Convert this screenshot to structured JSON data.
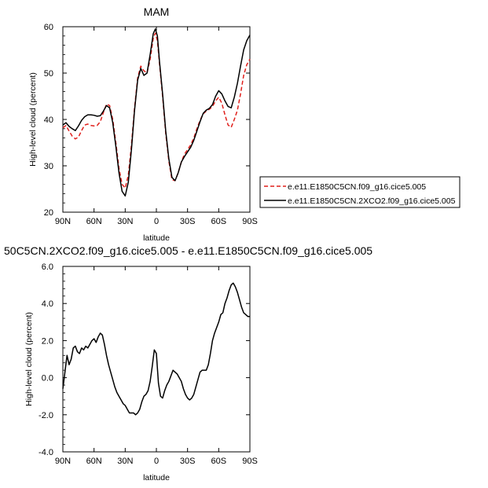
{
  "chart_data": [
    {
      "type": "line",
      "title": "MAM",
      "xlabel": "latitude",
      "ylabel": "High-level cloud (percent)",
      "xlim": [
        90,
        -90
      ],
      "ylim": [
        20,
        60
      ],
      "x_ticks": [
        "90N",
        "60N",
        "30N",
        "0",
        "30S",
        "60S",
        "90S"
      ],
      "y_ticks": [
        "20",
        "30",
        "40",
        "50",
        "60"
      ],
      "legend_position": "right",
      "series": [
        {
          "name": "e.e11.E1850C5CN.f09_g16.cice5.005",
          "color": "#e0201c",
          "dash": "dashed",
          "x": [
            90,
            87,
            84,
            81,
            78,
            75,
            72,
            69,
            66,
            63,
            60,
            57,
            54,
            51,
            48,
            45,
            42,
            39,
            36,
            33,
            30,
            27,
            24,
            21,
            18,
            15,
            12,
            9,
            6,
            3,
            1,
            -1,
            -3,
            -6,
            -9,
            -12,
            -15,
            -18,
            -21,
            -24,
            -27,
            -30,
            -33,
            -36,
            -39,
            -42,
            -45,
            -48,
            -51,
            -54,
            -57,
            -60,
            -63,
            -66,
            -69,
            -72,
            -75,
            -78,
            -81,
            -84,
            -87,
            -90
          ],
          "y": [
            38.2,
            38.7,
            37.5,
            36.4,
            35.8,
            36.2,
            37.6,
            38.8,
            39.0,
            38.7,
            38.6,
            38.7,
            39.5,
            41.5,
            43.3,
            43.0,
            40.0,
            35.0,
            29.5,
            26.0,
            25.2,
            28.0,
            34.5,
            42.5,
            49.0,
            51.5,
            50.5,
            50.0,
            53.0,
            57.5,
            58.6,
            57.0,
            52.0,
            45.0,
            37.0,
            31.0,
            27.0,
            26.8,
            28.5,
            30.8,
            32.5,
            33.5,
            34.5,
            36.0,
            38.0,
            39.8,
            41.2,
            41.8,
            42.2,
            42.8,
            44.0,
            44.8,
            43.5,
            41.0,
            38.8,
            38.3,
            40.0,
            42.0,
            45.5,
            49.5,
            51.8,
            53.0
          ]
        },
        {
          "name": "e.e11.E1850C5CN.2XCO2.f09_g16.cice5.005",
          "color": "#000000",
          "dash": "solid",
          "x": [
            90,
            87,
            84,
            81,
            78,
            75,
            72,
            69,
            66,
            63,
            60,
            57,
            54,
            51,
            48,
            45,
            42,
            39,
            36,
            33,
            30,
            27,
            24,
            21,
            18,
            15,
            12,
            9,
            6,
            3,
            1,
            -1,
            -3,
            -6,
            -9,
            -12,
            -15,
            -18,
            -21,
            -24,
            -27,
            -30,
            -33,
            -36,
            -39,
            -42,
            -45,
            -48,
            -51,
            -54,
            -57,
            -60,
            -63,
            -66,
            -69,
            -72,
            -75,
            -78,
            -81,
            -84,
            -87,
            -90
          ],
          "y": [
            38.8,
            39.3,
            38.5,
            38.0,
            37.6,
            38.6,
            39.8,
            40.6,
            41.0,
            41.0,
            40.9,
            40.7,
            40.8,
            41.8,
            43.0,
            42.5,
            39.3,
            34.2,
            28.5,
            24.5,
            23.5,
            26.5,
            33.5,
            42.0,
            48.5,
            51.0,
            49.5,
            50.0,
            54.0,
            58.5,
            59.5,
            58.0,
            52.5,
            45.5,
            37.5,
            31.5,
            27.5,
            26.8,
            28.5,
            30.8,
            32.0,
            33.0,
            34.0,
            35.5,
            37.5,
            39.5,
            41.3,
            42.0,
            42.4,
            43.2,
            45.0,
            46.2,
            45.5,
            44.0,
            42.8,
            42.5,
            44.8,
            47.8,
            51.5,
            55.0,
            57.0,
            58.2
          ]
        }
      ]
    },
    {
      "type": "line",
      "title": "50C5CN.2XCO2.f09_g16.cice5.005 - e.e11.E1850C5CN.f09_g16.cice5.005",
      "xlabel": "latitude",
      "ylabel": "High-level cloud (percent)",
      "xlim": [
        90,
        -90
      ],
      "ylim": [
        -4.0,
        6.0
      ],
      "x_ticks": [
        "90N",
        "60N",
        "30N",
        "0",
        "30S",
        "60S",
        "90S"
      ],
      "y_ticks": [
        "-4.0",
        "-2.0",
        "0.0",
        "2.0",
        "4.0",
        "6.0"
      ],
      "series": [
        {
          "color": "#000000",
          "dash": "solid",
          "x": [
            90,
            88,
            86,
            84,
            82,
            80,
            78,
            76,
            74,
            72,
            70,
            68,
            66,
            64,
            62,
            60,
            58,
            56,
            54,
            52,
            50,
            48,
            46,
            44,
            42,
            40,
            38,
            36,
            34,
            32,
            30,
            28,
            26,
            24,
            22,
            20,
            18,
            16,
            14,
            12,
            10,
            8,
            6,
            4,
            2,
            0,
            -2,
            -4,
            -6,
            -8,
            -10,
            -12,
            -14,
            -16,
            -18,
            -20,
            -22,
            -24,
            -26,
            -28,
            -30,
            -32,
            -34,
            -36,
            -38,
            -40,
            -42,
            -44,
            -46,
            -48,
            -50,
            -52,
            -54,
            -56,
            -58,
            -60,
            -62,
            -64,
            -66,
            -68,
            -70,
            -72,
            -74,
            -76,
            -78,
            -80,
            -82,
            -84,
            -86,
            -88,
            -90
          ],
          "y": [
            -0.6,
            0.3,
            1.2,
            0.7,
            1.0,
            1.6,
            1.7,
            1.4,
            1.3,
            1.6,
            1.5,
            1.7,
            1.6,
            1.8,
            2.0,
            2.1,
            1.9,
            2.2,
            2.4,
            2.3,
            1.8,
            1.2,
            0.7,
            0.3,
            -0.1,
            -0.5,
            -0.8,
            -1.0,
            -1.2,
            -1.4,
            -1.5,
            -1.7,
            -1.9,
            -1.9,
            -1.9,
            -2.0,
            -1.9,
            -1.7,
            -1.3,
            -1.0,
            -0.9,
            -0.7,
            -0.2,
            0.6,
            1.5,
            1.3,
            -0.3,
            -1.0,
            -1.1,
            -0.7,
            -0.4,
            -0.2,
            0.1,
            0.4,
            0.3,
            0.2,
            0.0,
            -0.2,
            -0.6,
            -0.9,
            -1.1,
            -1.2,
            -1.1,
            -0.9,
            -0.5,
            -0.1,
            0.3,
            0.4,
            0.4,
            0.4,
            0.7,
            1.3,
            2.0,
            2.4,
            2.7,
            3.0,
            3.4,
            3.5,
            4.0,
            4.3,
            4.7,
            5.0,
            5.1,
            4.9,
            4.6,
            4.2,
            3.8,
            3.5,
            3.4,
            3.3,
            3.3
          ]
        }
      ]
    }
  ]
}
